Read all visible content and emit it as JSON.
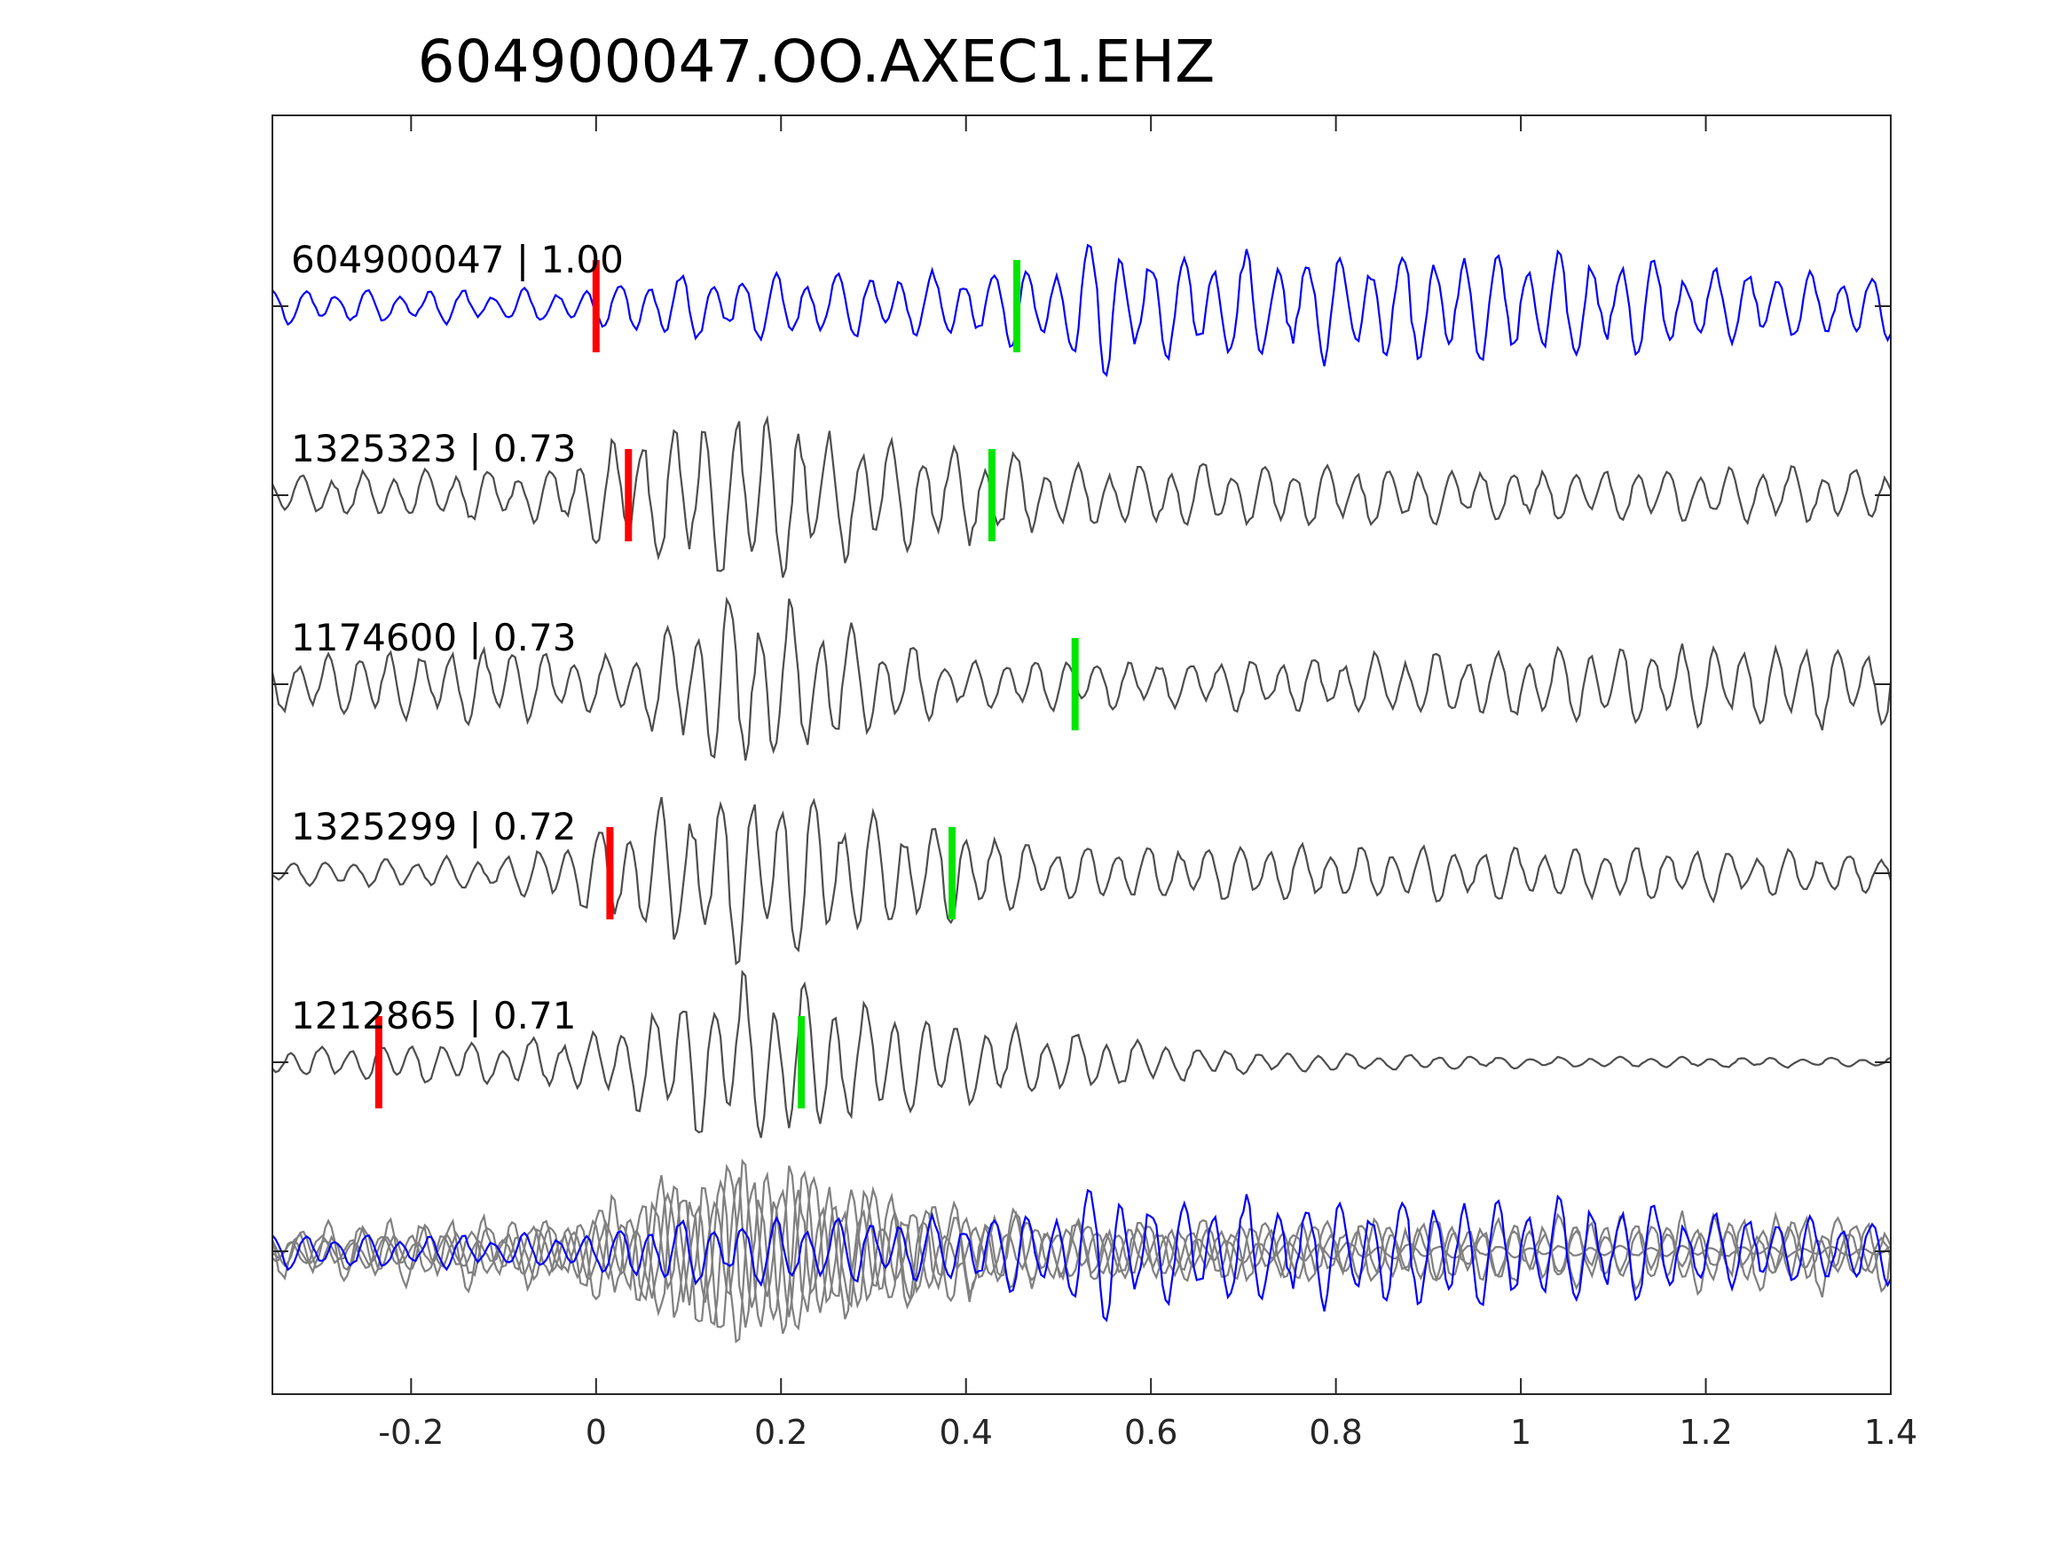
{
  "chart_data": {
    "type": "line",
    "title": "604900047.OO.AXEC1.EHZ",
    "xlabel": "",
    "ylabel": "",
    "xlim": [
      -0.35,
      1.4
    ],
    "xticks": [
      -0.2,
      0,
      0.2,
      0.4,
      0.6,
      0.8,
      1,
      1.2,
      1.4
    ],
    "xtick_labels": [
      "-0.2",
      "0",
      "0.2",
      "0.4",
      "0.6",
      "0.8",
      "1",
      "1.2",
      "1.4"
    ],
    "grid": false,
    "legend": false,
    "colors": {
      "template": "#0000ff",
      "match": "#4d4d4d",
      "overlay": "#808080",
      "p_pick": "#ff0000",
      "s_pick": "#00e600"
    },
    "series": [
      {
        "name": "604900047 | 1.00",
        "label": "604900047 | 1.00",
        "id": "604900047",
        "cc": 1.0,
        "role": "template",
        "p_pick": 0.0,
        "s_pick": 0.455,
        "envelope": [
          [
            -0.35,
            0.18
          ],
          [
            0.0,
            0.18
          ],
          [
            0.05,
            0.34
          ],
          [
            0.4,
            0.36
          ],
          [
            0.5,
            0.45
          ],
          [
            0.55,
            0.85
          ],
          [
            0.6,
            0.5
          ],
          [
            0.8,
            0.6
          ],
          [
            1.0,
            0.62
          ],
          [
            1.1,
            0.55
          ],
          [
            1.2,
            0.4
          ],
          [
            1.4,
            0.35
          ]
        ]
      },
      {
        "name": "1325323 | 0.73",
        "label": "1325323 | 0.73",
        "id": "1325323",
        "cc": 0.73,
        "role": "match",
        "p_pick": 0.035,
        "s_pick": 0.428,
        "envelope": [
          [
            -0.35,
            0.22
          ],
          [
            -0.05,
            0.3
          ],
          [
            0.04,
            0.7
          ],
          [
            0.15,
            0.95
          ],
          [
            0.2,
            0.85
          ],
          [
            0.3,
            0.6
          ],
          [
            0.43,
            0.5
          ],
          [
            0.5,
            0.35
          ],
          [
            0.7,
            0.35
          ],
          [
            1.0,
            0.28
          ],
          [
            1.2,
            0.3
          ],
          [
            1.4,
            0.3
          ]
        ]
      },
      {
        "name": "1174600 | 0.73",
        "label": "1174600 | 0.73",
        "id": "1174600",
        "cc": 0.73,
        "role": "match",
        "p_pick": null,
        "s_pick": 0.518,
        "envelope": [
          [
            -0.35,
            0.3
          ],
          [
            -0.1,
            0.42
          ],
          [
            0.0,
            0.3
          ],
          [
            0.05,
            0.45
          ],
          [
            0.15,
            0.95
          ],
          [
            0.22,
            0.85
          ],
          [
            0.3,
            0.55
          ],
          [
            0.4,
            0.25
          ],
          [
            0.5,
            0.3
          ],
          [
            0.6,
            0.25
          ],
          [
            0.8,
            0.3
          ],
          [
            0.9,
            0.35
          ],
          [
            1.2,
            0.45
          ],
          [
            1.4,
            0.45
          ]
        ]
      },
      {
        "name": "1325299 | 0.72",
        "label": "1325299 | 0.72",
        "id": "1325299",
        "cc": 0.72,
        "role": "match",
        "p_pick": 0.015,
        "s_pick": 0.385,
        "envelope": [
          [
            -0.35,
            0.12
          ],
          [
            -0.1,
            0.18
          ],
          [
            0.0,
            0.45
          ],
          [
            0.05,
            0.7
          ],
          [
            0.15,
            0.95
          ],
          [
            0.22,
            0.85
          ],
          [
            0.3,
            0.65
          ],
          [
            0.39,
            0.55
          ],
          [
            0.5,
            0.3
          ],
          [
            0.7,
            0.3
          ],
          [
            1.0,
            0.3
          ],
          [
            1.2,
            0.28
          ],
          [
            1.4,
            0.2
          ]
        ]
      },
      {
        "name": "1212865 | 0.71",
        "label": "1212865 | 0.71",
        "id": "1212865",
        "cc": 0.71,
        "role": "match",
        "p_pick": -0.235,
        "s_pick": 0.222,
        "envelope": [
          [
            -0.35,
            0.15
          ],
          [
            -0.1,
            0.25
          ],
          [
            0.0,
            0.3
          ],
          [
            0.05,
            0.55
          ],
          [
            0.15,
            0.95
          ],
          [
            0.22,
            0.9
          ],
          [
            0.3,
            0.6
          ],
          [
            0.4,
            0.45
          ],
          [
            0.55,
            0.3
          ],
          [
            0.7,
            0.12
          ],
          [
            1.0,
            0.06
          ],
          [
            1.4,
            0.05
          ]
        ]
      }
    ],
    "overlay": "all traces superimposed"
  }
}
